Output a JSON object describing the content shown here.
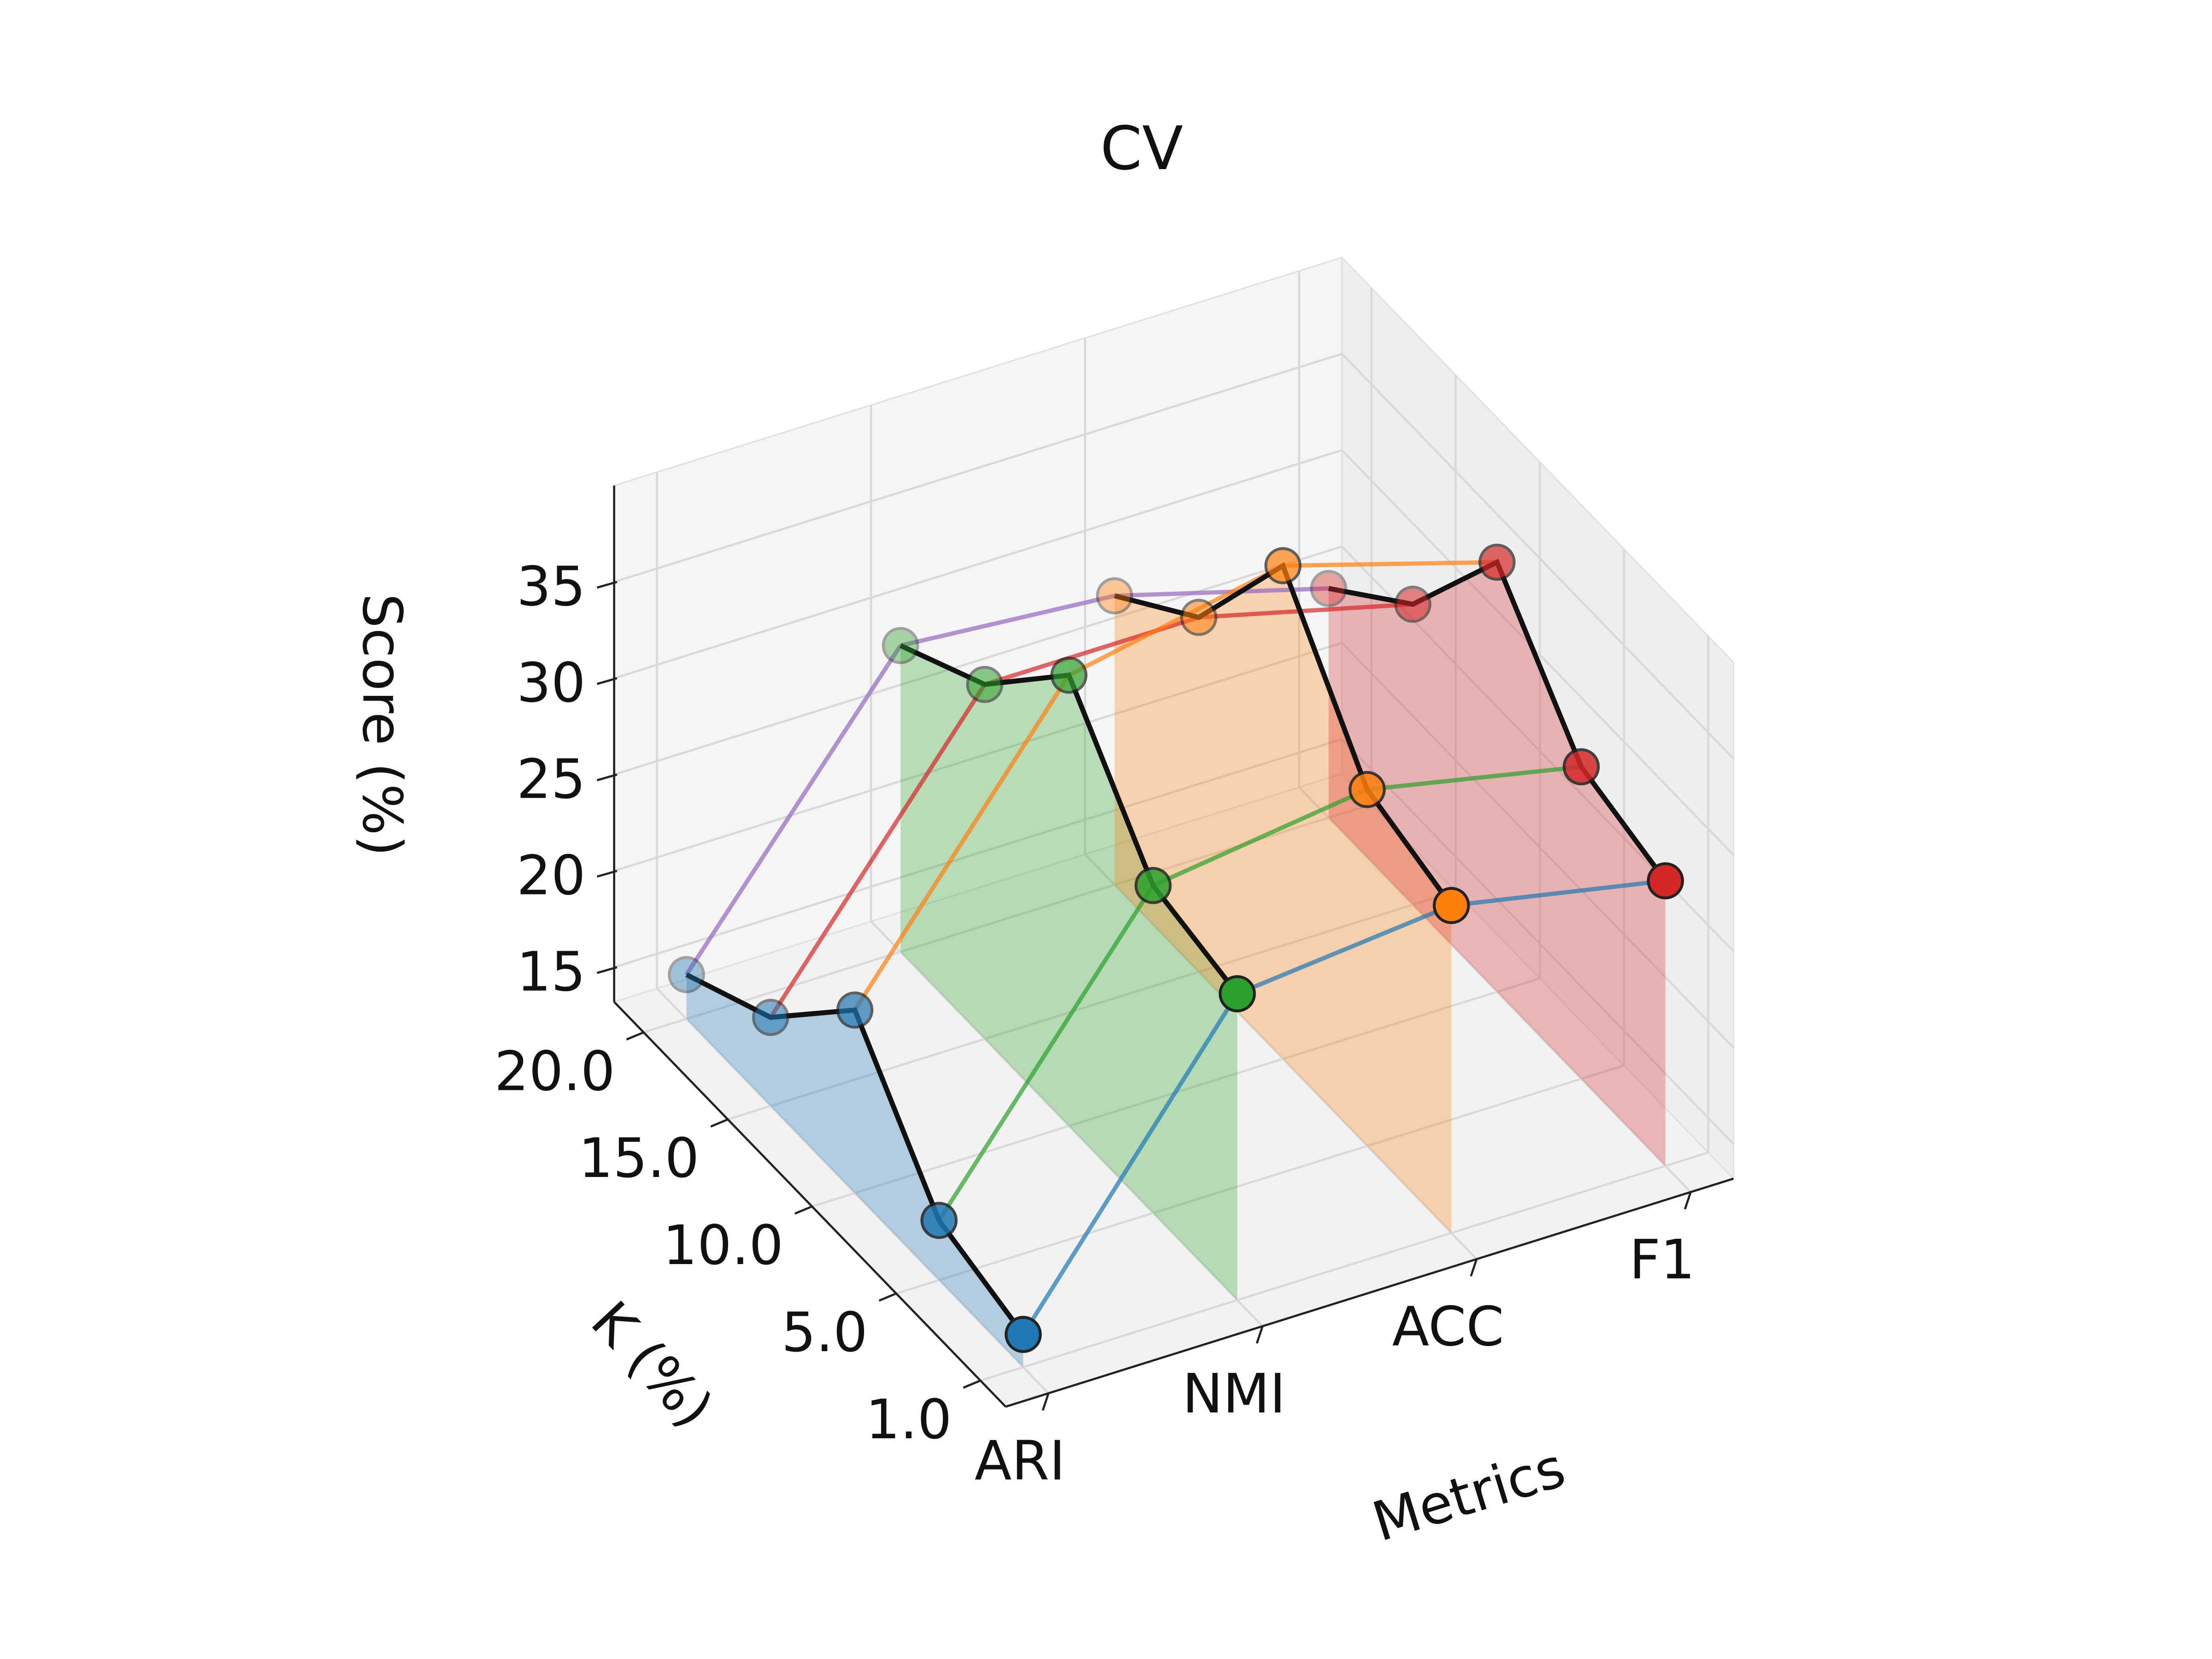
{
  "chart_data": {
    "type": "line3d",
    "title": "CV",
    "xlabel": "Metrics",
    "ylabel": "K (%)",
    "zlabel": "Score (%)",
    "yticks": [
      {
        "value": 1,
        "label": "1.0"
      },
      {
        "value": 5,
        "label": "5.0"
      },
      {
        "value": 10,
        "label": "10.0"
      },
      {
        "value": 15,
        "label": "15.0"
      },
      {
        "value": 20,
        "label": "20.0"
      }
    ],
    "zlim": [
      13.2,
      40
    ],
    "zticks": [
      15,
      20,
      25,
      30,
      35
    ],
    "series": [
      {
        "name": "ARI",
        "color": "#1f77b4",
        "values": [
          14.9,
          16.3,
          22.7,
          17.8,
          15.5
        ]
      },
      {
        "name": "NMI",
        "color": "#2ca02c",
        "values": [
          29.1,
          30.2,
          36.6,
          31.6,
          29.1
        ]
      },
      {
        "name": "ACC",
        "color": "#ff7f0e",
        "values": [
          30.2,
          31.7,
          38.8,
          31.6,
          28.2
        ]
      },
      {
        "name": "F1",
        "color": "#d62728",
        "values": [
          28.0,
          29.4,
          35.5,
          28.8,
          25.1
        ]
      }
    ],
    "k_colors": [
      "#1f77b4",
      "#2ca02c",
      "#ff7f0e",
      "#d62728",
      "#9467bd"
    ],
    "grid": true
  }
}
